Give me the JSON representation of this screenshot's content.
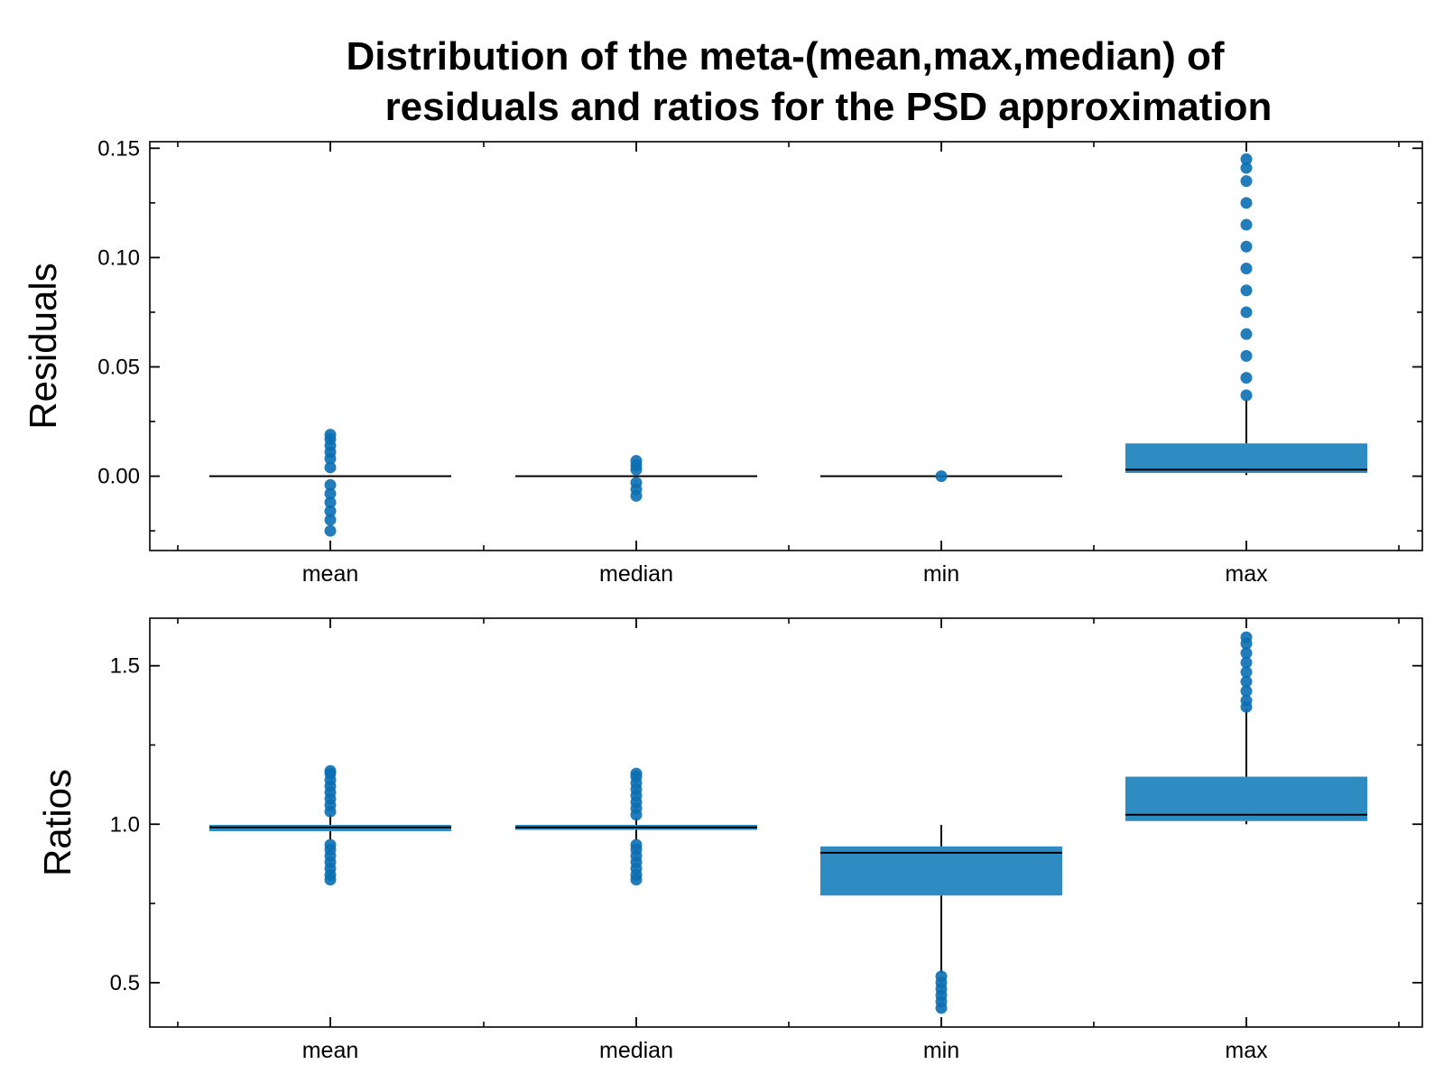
{
  "chart_data": {
    "title_lines": [
      "Distribution of the meta-(mean,max,median) of",
      "residuals and ratios for the PSD approximation"
    ],
    "box_color": "#2f8cc3",
    "point_color": "#0a6fb3",
    "panels": [
      {
        "type": "box",
        "ylabel": "Residuals",
        "ylim": [
          -0.034,
          0.153
        ],
        "yticks": [
          0.0,
          0.05,
          0.1,
          0.15
        ],
        "yticklabels": [
          "0.00",
          "0.05",
          "0.10",
          "0.15"
        ],
        "yminor": [
          -0.025,
          0.025,
          0.075,
          0.125
        ],
        "categories": [
          "mean",
          "median",
          "min",
          "max"
        ],
        "boxes": [
          {
            "q1": 0.0,
            "median": 0.0,
            "q3": 0.0,
            "whisker_low": 0.0,
            "whisker_high": 0.0,
            "outliers": [
              -0.025,
              -0.02,
              -0.016,
              -0.012,
              -0.008,
              -0.004,
              0.004,
              0.008,
              0.011,
              0.014,
              0.017,
              0.019
            ]
          },
          {
            "q1": 0.0,
            "median": 0.0,
            "q3": 0.0,
            "whisker_low": 0.0,
            "whisker_high": 0.0,
            "outliers": [
              -0.009,
              -0.006,
              -0.003,
              0.003,
              0.005,
              0.007
            ]
          },
          {
            "q1": 0.0,
            "median": 0.0,
            "q3": 0.0,
            "whisker_low": 0.0,
            "whisker_high": 0.0,
            "outliers": [
              0.0
            ]
          },
          {
            "q1": 0.0015,
            "median": 0.003,
            "q3": 0.015,
            "whisker_low": 0.0005,
            "whisker_high": 0.035,
            "outliers": [
              0.037,
              0.045,
              0.055,
              0.065,
              0.075,
              0.085,
              0.095,
              0.105,
              0.115,
              0.125,
              0.135,
              0.141,
              0.145
            ]
          }
        ]
      },
      {
        "type": "box",
        "ylabel": "Ratios",
        "ylim": [
          0.36,
          1.65
        ],
        "yticks": [
          0.5,
          1.0,
          1.5
        ],
        "yticklabels": [
          "0.5",
          "1.0",
          "1.5"
        ],
        "yminor": [
          0.75,
          1.25
        ],
        "categories": [
          "mean",
          "median",
          "min",
          "max"
        ],
        "boxes": [
          {
            "q1": 0.978,
            "median": 0.99,
            "q3": 0.998,
            "whisker_low": 0.95,
            "whisker_high": 1.03,
            "outliers": [
              0.825,
              0.84,
              0.86,
              0.88,
              0.9,
              0.92,
              0.935,
              1.04,
              1.06,
              1.08,
              1.1,
              1.12,
              1.14,
              1.16,
              1.168
            ]
          },
          {
            "q1": 0.982,
            "median": 0.99,
            "q3": 0.998,
            "whisker_low": 0.95,
            "whisker_high": 1.02,
            "outliers": [
              0.825,
              0.84,
              0.86,
              0.88,
              0.9,
              0.92,
              0.935,
              1.03,
              1.05,
              1.07,
              1.09,
              1.11,
              1.13,
              1.15,
              1.16
            ]
          },
          {
            "q1": 0.775,
            "median": 0.91,
            "q3": 0.93,
            "whisker_low": 0.53,
            "whisker_high": 0.998,
            "outliers": [
              0.42,
              0.44,
              0.46,
              0.48,
              0.5,
              0.52
            ]
          },
          {
            "q1": 1.01,
            "median": 1.03,
            "q3": 1.15,
            "whisker_low": 1.0,
            "whisker_high": 1.365,
            "outliers": [
              1.37,
              1.39,
              1.42,
              1.45,
              1.48,
              1.51,
              1.54,
              1.57,
              1.59
            ]
          }
        ]
      }
    ]
  }
}
